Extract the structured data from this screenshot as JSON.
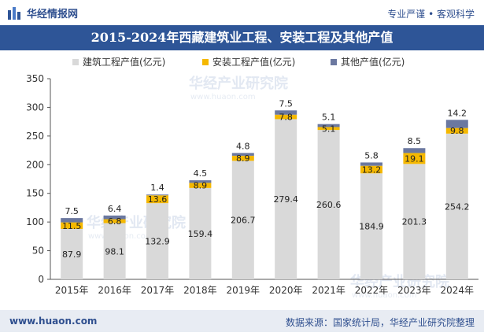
{
  "header": {
    "brand_name": "华经情报网",
    "brand_icon": "huajing-logo-icon",
    "slogan": "专业严谨 • 客观科学"
  },
  "colors": {
    "title_bg": "#2e5597",
    "construction": "#d9d9d9",
    "installation": "#f5b800",
    "other": "#6b78a0"
  },
  "watermark": {
    "cn": "华经产业研究院",
    "url": "www.huaon.com"
  },
  "chart_data": {
    "type": "bar",
    "stacked": true,
    "title": "2015-2024年西藏建筑业工程、安装工程及其他产值",
    "categories": [
      "2015年",
      "2016年",
      "2017年",
      "2018年",
      "2019年",
      "2020年",
      "2021年",
      "2022年",
      "2023年",
      "2024年"
    ],
    "series": [
      {
        "name": "建筑工程产值(亿元)",
        "values": [
          87.9,
          98.1,
          132.9,
          159.4,
          206.7,
          279.4,
          260.6,
          184.9,
          201.3,
          254.2
        ]
      },
      {
        "name": "安装工程产值(亿元)",
        "values": [
          11.5,
          6.8,
          13.6,
          8.9,
          8.9,
          7.8,
          5.1,
          13.2,
          19.1,
          9.8
        ]
      },
      {
        "name": "其他产值(亿元)",
        "values": [
          7.5,
          6.4,
          1.4,
          4.5,
          4.8,
          7.5,
          5.1,
          5.8,
          8.5,
          14.2
        ]
      }
    ],
    "yticks": [
      0,
      50,
      100,
      150,
      200,
      250,
      300,
      350
    ],
    "ylim": [
      0,
      350
    ],
    "legend_position": "top",
    "xlabel": "",
    "ylabel": ""
  },
  "footer": {
    "url": "www.huaon.com",
    "source": "数据来源：国家统计局，华经产业研究院整理"
  }
}
